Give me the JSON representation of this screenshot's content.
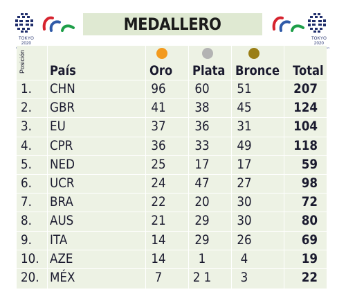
{
  "header": {
    "title": "MEDALLERO",
    "logo_caption": "TOKYO 2020",
    "logo_subcaption": "PARALYMPIC GAMES"
  },
  "table": {
    "position_label": "Posición",
    "columns": {
      "country": "País",
      "gold": "Oro",
      "silver": "Plata",
      "bronze": "Bronce",
      "total": "Total"
    },
    "medal_colors": {
      "gold": "#f39a1e",
      "silver": "#b3b3b3",
      "bronze": "#9a7e16"
    },
    "rows": [
      {
        "pos": "1.",
        "country": "CHN",
        "gold": "96",
        "silver": "60",
        "bronze": "51",
        "total": "207"
      },
      {
        "pos": "2.",
        "country": "GBR",
        "gold": "41",
        "silver": "38",
        "bronze": "45",
        "total": "124"
      },
      {
        "pos": "3.",
        "country": "EU",
        "gold": "37",
        "silver": "36",
        "bronze": "31",
        "total": "104"
      },
      {
        "pos": "4.",
        "country": "CPR",
        "gold": "36",
        "silver": "33",
        "bronze": "49",
        "total": "118"
      },
      {
        "pos": "5.",
        "country": "NED",
        "gold": "25",
        "silver": "17",
        "bronze": "17",
        "total": "59"
      },
      {
        "pos": "6.",
        "country": "UCR",
        "gold": "24",
        "silver": "47",
        "bronze": "27",
        "total": "98"
      },
      {
        "pos": "7.",
        "country": "BRA",
        "gold": "22",
        "silver": "20",
        "bronze": "30",
        "total": "72"
      },
      {
        "pos": "8.",
        "country": "AUS",
        "gold": "21",
        "silver": "29",
        "bronze": "30",
        "total": "80"
      },
      {
        "pos": "9.",
        "country": "ITA",
        "gold": "14",
        "silver": "29",
        "bronze": "26",
        "total": "69"
      },
      {
        "pos": "10.",
        "country": "AZE",
        "gold": "14",
        "silver": "1",
        "bronze": "4",
        "total": "19"
      },
      {
        "pos": "20.",
        "country": "MÉX",
        "gold": "7",
        "silver": "2 1",
        "bronze": "3",
        "total": "22"
      }
    ]
  }
}
